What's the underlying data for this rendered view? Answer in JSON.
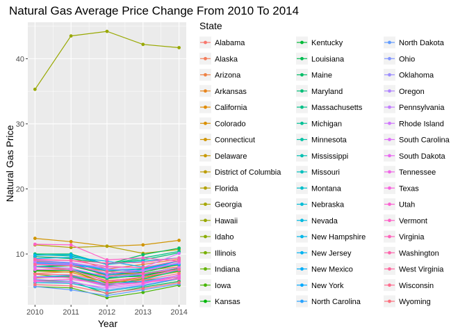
{
  "chart_data": {
    "type": "line",
    "title": "Natural Gas Average Price Change From 2010 To 2014",
    "xlabel": "Year",
    "ylabel": "Natural Gas Price",
    "x": [
      2010,
      2011,
      2012,
      2013,
      2014
    ],
    "x_ticks": [
      "2010",
      "2011",
      "2012",
      "2013",
      "2014"
    ],
    "y_ticks": [
      "10",
      "20",
      "30",
      "40"
    ],
    "ylim": [
      2.2,
      45.6
    ],
    "grid": true,
    "legend_title": "State",
    "legend_position": "right",
    "series": [
      {
        "name": "Alabama",
        "values": [
          8.9,
          8.5,
          6.6,
          7.2,
          8.4
        ]
      },
      {
        "name": "Alaska",
        "values": [
          7.0,
          7.3,
          6.8,
          7.5,
          8.0
        ]
      },
      {
        "name": "Arizona",
        "values": [
          9.6,
          9.4,
          7.7,
          8.4,
          9.2
        ]
      },
      {
        "name": "Arkansas",
        "values": [
          8.0,
          7.6,
          5.9,
          6.4,
          7.6
        ]
      },
      {
        "name": "California",
        "values": [
          7.4,
          7.2,
          5.6,
          6.4,
          7.3
        ]
      },
      {
        "name": "Colorado",
        "values": [
          6.3,
          6.6,
          5.3,
          6.0,
          6.4
        ]
      },
      {
        "name": "Connecticut",
        "values": [
          12.4,
          11.9,
          11.2,
          11.4,
          12.1
        ]
      },
      {
        "name": "Delaware",
        "values": [
          9.0,
          8.4,
          7.0,
          7.6,
          8.3
        ]
      },
      {
        "name": "District of Columbia",
        "values": [
          8.8,
          8.2,
          6.9,
          7.0,
          7.9
        ]
      },
      {
        "name": "Florida",
        "values": [
          11.4,
          11.0,
          11.2,
          10.1,
          10.7
        ]
      },
      {
        "name": "Georgia",
        "values": [
          8.9,
          8.6,
          7.3,
          7.8,
          8.9
        ]
      },
      {
        "name": "Hawaii",
        "values": [
          35.3,
          43.5,
          44.2,
          42.2,
          41.7
        ]
      },
      {
        "name": "Idaho",
        "values": [
          6.9,
          6.3,
          5.9,
          5.6,
          6.5
        ]
      },
      {
        "name": "Illinois",
        "values": [
          7.6,
          7.5,
          5.5,
          6.2,
          7.4
        ]
      },
      {
        "name": "Indiana",
        "values": [
          7.5,
          7.6,
          6.2,
          6.8,
          7.6
        ]
      },
      {
        "name": "Iowa",
        "values": [
          5.0,
          4.8,
          3.3,
          4.1,
          5.2
        ]
      },
      {
        "name": "Kansas",
        "values": [
          7.4,
          7.5,
          6.4,
          6.6,
          7.8
        ]
      },
      {
        "name": "Kentucky",
        "values": [
          8.0,
          8.2,
          6.8,
          7.2,
          8.4
        ]
      },
      {
        "name": "Louisiana",
        "values": [
          5.9,
          5.8,
          3.9,
          4.9,
          5.8
        ]
      },
      {
        "name": "Maine",
        "values": [
          10.0,
          10.0,
          8.4,
          9.9,
          10.9
        ]
      },
      {
        "name": "Maryland",
        "values": [
          9.6,
          9.3,
          8.5,
          9.1,
          10.2
        ]
      },
      {
        "name": "Massachusetts",
        "values": [
          9.9,
          9.7,
          8.4,
          9.4,
          10.4
        ]
      },
      {
        "name": "Michigan",
        "values": [
          8.1,
          8.3,
          7.0,
          7.6,
          8.4
        ]
      },
      {
        "name": "Minnesota",
        "values": [
          6.4,
          6.5,
          5.2,
          6.1,
          7.5
        ]
      },
      {
        "name": "Mississippi",
        "values": [
          7.6,
          7.6,
          6.5,
          7.0,
          7.9
        ]
      },
      {
        "name": "Missouri",
        "values": [
          8.7,
          8.6,
          7.4,
          7.7,
          9.0
        ]
      },
      {
        "name": "Montana",
        "values": [
          8.1,
          7.8,
          6.3,
          6.8,
          7.9
        ]
      },
      {
        "name": "Nebraska",
        "values": [
          5.6,
          5.5,
          4.3,
          5.1,
          6.2
        ]
      },
      {
        "name": "Nevada",
        "values": [
          8.8,
          8.6,
          7.6,
          7.7,
          8.6
        ]
      },
      {
        "name": "New Hampshire",
        "values": [
          9.8,
          9.9,
          8.4,
          8.9,
          9.4
        ]
      },
      {
        "name": "New Jersey",
        "values": [
          9.3,
          9.5,
          8.9,
          8.0,
          8.4
        ]
      },
      {
        "name": "New Mexico",
        "values": [
          6.5,
          6.7,
          5.4,
          5.8,
          6.7
        ]
      },
      {
        "name": "New York",
        "values": [
          8.6,
          8.6,
          6.8,
          7.4,
          9.0
        ]
      },
      {
        "name": "North Carolina",
        "values": [
          8.6,
          8.4,
          7.6,
          7.4,
          8.6
        ]
      },
      {
        "name": "North Dakota",
        "values": [
          5.0,
          4.5,
          3.6,
          4.5,
          5.4
        ]
      },
      {
        "name": "Ohio",
        "values": [
          6.1,
          5.8,
          4.5,
          5.2,
          6.3
        ]
      },
      {
        "name": "Oklahoma",
        "values": [
          6.5,
          6.4,
          5.0,
          5.7,
          6.7
        ]
      },
      {
        "name": "Oregon",
        "values": [
          9.0,
          8.7,
          7.7,
          7.4,
          8.6
        ]
      },
      {
        "name": "Pennsylvania",
        "values": [
          8.5,
          8.3,
          7.0,
          7.5,
          8.7
        ]
      },
      {
        "name": "Rhode Island",
        "values": [
          8.8,
          8.5,
          8.0,
          7.9,
          10.1
        ]
      },
      {
        "name": "South Carolina",
        "values": [
          8.0,
          7.8,
          6.5,
          6.9,
          7.9
        ]
      },
      {
        "name": "South Dakota",
        "values": [
          5.8,
          5.6,
          4.8,
          5.4,
          6.8
        ]
      },
      {
        "name": "Tennessee",
        "values": [
          7.6,
          7.6,
          5.8,
          6.5,
          7.6
        ]
      },
      {
        "name": "Texas",
        "values": [
          6.4,
          6.4,
          5.1,
          5.6,
          6.5
        ]
      },
      {
        "name": "Utah",
        "values": [
          5.9,
          6.1,
          5.4,
          5.6,
          6.2
        ]
      },
      {
        "name": "Vermont",
        "values": [
          11.5,
          11.4,
          9.1,
          9.4,
          8.9
        ]
      },
      {
        "name": "Virginia",
        "values": [
          9.1,
          9.0,
          8.1,
          7.9,
          9.0
        ]
      },
      {
        "name": "Washington",
        "values": [
          9.2,
          9.0,
          8.6,
          8.7,
          9.4
        ]
      },
      {
        "name": "West Virginia",
        "values": [
          8.4,
          8.2,
          7.3,
          7.0,
          7.6
        ]
      },
      {
        "name": "Wisconsin",
        "values": [
          6.9,
          6.8,
          5.8,
          6.0,
          7.0
        ]
      },
      {
        "name": "Wyoming",
        "values": [
          5.3,
          5.1,
          4.0,
          4.7,
          5.6
        ]
      }
    ]
  }
}
